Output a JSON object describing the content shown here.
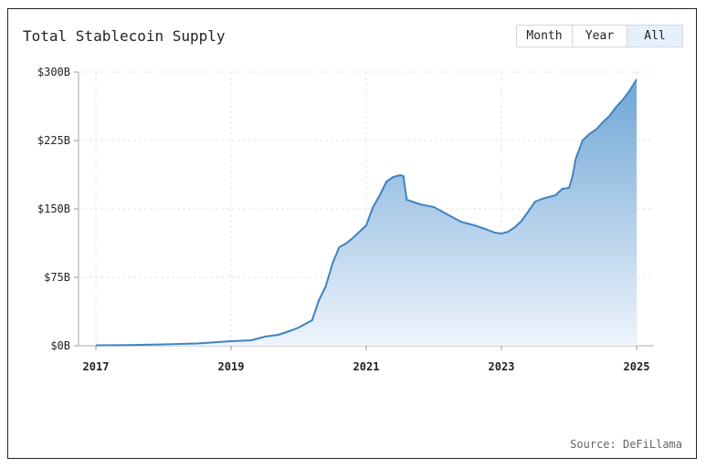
{
  "title": "Total Stablecoin Supply",
  "range_buttons": [
    {
      "label": "Month",
      "active": false
    },
    {
      "label": "Year",
      "active": false
    },
    {
      "label": "All",
      "active": true
    }
  ],
  "source": "Source: DeFiLlama",
  "colors": {
    "line": "#3f83c2",
    "fill_top": "#6fa6d6",
    "fill_bottom": "#eef4fb",
    "grid": "#e6e6e6"
  },
  "chart_data": {
    "type": "area",
    "title": "Total Stablecoin Supply",
    "xlabel": "",
    "ylabel": "",
    "xlim": [
      2017,
      2025
    ],
    "ylim": [
      0,
      300
    ],
    "x_ticks": [
      2017,
      2019,
      2021,
      2023,
      2025
    ],
    "x_tick_labels": [
      "2017",
      "2019",
      "2021",
      "2023",
      "2025"
    ],
    "y_ticks": [
      0,
      75,
      150,
      225,
      300
    ],
    "y_tick_labels": [
      "$0B",
      "$75B",
      "$150B",
      "$225B",
      "$300B"
    ],
    "grid": true,
    "series": [
      {
        "x": [
          2017.0,
          2017.5,
          2018.0,
          2018.5,
          2019.0,
          2019.3,
          2019.5,
          2019.7,
          2019.9,
          2020.0,
          2020.2,
          2020.3,
          2020.4,
          2020.5,
          2020.6,
          2020.7,
          2020.8,
          2020.9,
          2021.0,
          2021.1,
          2021.2,
          2021.3,
          2021.4,
          2021.5,
          2021.55,
          2021.6,
          2021.8,
          2022.0,
          2022.2,
          2022.4,
          2022.6,
          2022.8,
          2022.9,
          2023.0,
          2023.1,
          2023.2,
          2023.3,
          2023.5,
          2023.6,
          2023.8,
          2023.9,
          2024.0,
          2024.05,
          2024.1,
          2024.2,
          2024.3,
          2024.4,
          2024.5,
          2024.6,
          2024.7,
          2024.8,
          2024.9,
          2025.0
        ],
        "values": [
          0.5,
          0.8,
          1.5,
          2.5,
          5,
          6,
          10,
          12,
          17,
          20,
          28,
          50,
          65,
          90,
          108,
          112,
          118,
          125,
          132,
          152,
          165,
          180,
          185,
          187,
          186,
          160,
          155,
          152,
          144,
          136,
          132,
          127,
          124,
          123,
          125,
          130,
          137,
          158,
          161,
          165,
          172,
          173,
          185,
          205,
          225,
          232,
          237,
          245,
          252,
          262,
          270,
          280,
          292
        ]
      }
    ]
  }
}
